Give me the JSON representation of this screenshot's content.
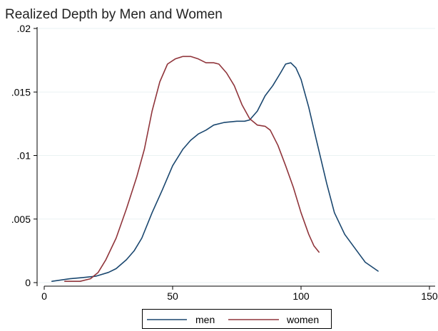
{
  "chart_data": {
    "type": "line",
    "title": "Realized Depth by Men and Women",
    "xlabel": "",
    "ylabel": "",
    "xlim": [
      0,
      150
    ],
    "ylim": [
      0,
      0.02
    ],
    "x_ticks": [
      {
        "value": 0,
        "label": "0"
      },
      {
        "value": 50,
        "label": "50"
      },
      {
        "value": 100,
        "label": "100"
      },
      {
        "value": 150,
        "label": "150"
      }
    ],
    "y_ticks": [
      {
        "value": 0,
        "label": "0"
      },
      {
        "value": 0.005,
        "label": ".005"
      },
      {
        "value": 0.01,
        "label": ".01"
      },
      {
        "value": 0.015,
        "label": ".015"
      },
      {
        "value": 0.02,
        "label": ".02"
      }
    ],
    "grid": "horizontal",
    "legend_position": "bottom",
    "series": [
      {
        "name": "men",
        "color": "#1a476f",
        "points": [
          [
            3,
            0.0001
          ],
          [
            10,
            0.0003
          ],
          [
            15,
            0.0004
          ],
          [
            20,
            0.0005
          ],
          [
            25,
            0.0008
          ],
          [
            28,
            0.0011
          ],
          [
            32,
            0.0018
          ],
          [
            35,
            0.0025
          ],
          [
            38,
            0.0035
          ],
          [
            42,
            0.0055
          ],
          [
            46,
            0.0073
          ],
          [
            50,
            0.0092
          ],
          [
            54,
            0.0105
          ],
          [
            57,
            0.0112
          ],
          [
            60,
            0.0117
          ],
          [
            63,
            0.012
          ],
          [
            66,
            0.0124
          ],
          [
            70,
            0.0126
          ],
          [
            75,
            0.0127
          ],
          [
            78,
            0.0127
          ],
          [
            80,
            0.0128
          ],
          [
            83,
            0.0135
          ],
          [
            86,
            0.0147
          ],
          [
            89,
            0.0155
          ],
          [
            92,
            0.0165
          ],
          [
            94,
            0.0172
          ],
          [
            96,
            0.0173
          ],
          [
            98,
            0.0169
          ],
          [
            100,
            0.016
          ],
          [
            103,
            0.0138
          ],
          [
            106,
            0.0112
          ],
          [
            110,
            0.0078
          ],
          [
            113,
            0.0055
          ],
          [
            117,
            0.0038
          ],
          [
            121,
            0.0027
          ],
          [
            125,
            0.0016
          ],
          [
            130,
            0.0009
          ]
        ]
      },
      {
        "name": "women",
        "color": "#90353b",
        "points": [
          [
            8,
            0.0001
          ],
          [
            14,
            0.0001
          ],
          [
            18,
            0.0003
          ],
          [
            21,
            0.0008
          ],
          [
            24,
            0.0018
          ],
          [
            28,
            0.0035
          ],
          [
            32,
            0.0058
          ],
          [
            36,
            0.0083
          ],
          [
            39,
            0.0105
          ],
          [
            42,
            0.0135
          ],
          [
            45,
            0.0158
          ],
          [
            48,
            0.0172
          ],
          [
            51,
            0.0176
          ],
          [
            54,
            0.0178
          ],
          [
            57,
            0.0178
          ],
          [
            60,
            0.0176
          ],
          [
            63,
            0.0173
          ],
          [
            66,
            0.0173
          ],
          [
            68,
            0.0172
          ],
          [
            71,
            0.0165
          ],
          [
            74,
            0.0155
          ],
          [
            77,
            0.014
          ],
          [
            80,
            0.0129
          ],
          [
            83,
            0.0124
          ],
          [
            86,
            0.0123
          ],
          [
            88,
            0.012
          ],
          [
            91,
            0.0108
          ],
          [
            94,
            0.0092
          ],
          [
            97,
            0.0075
          ],
          [
            100,
            0.0055
          ],
          [
            103,
            0.0038
          ],
          [
            105,
            0.0029
          ],
          [
            107,
            0.0024
          ]
        ]
      }
    ]
  }
}
